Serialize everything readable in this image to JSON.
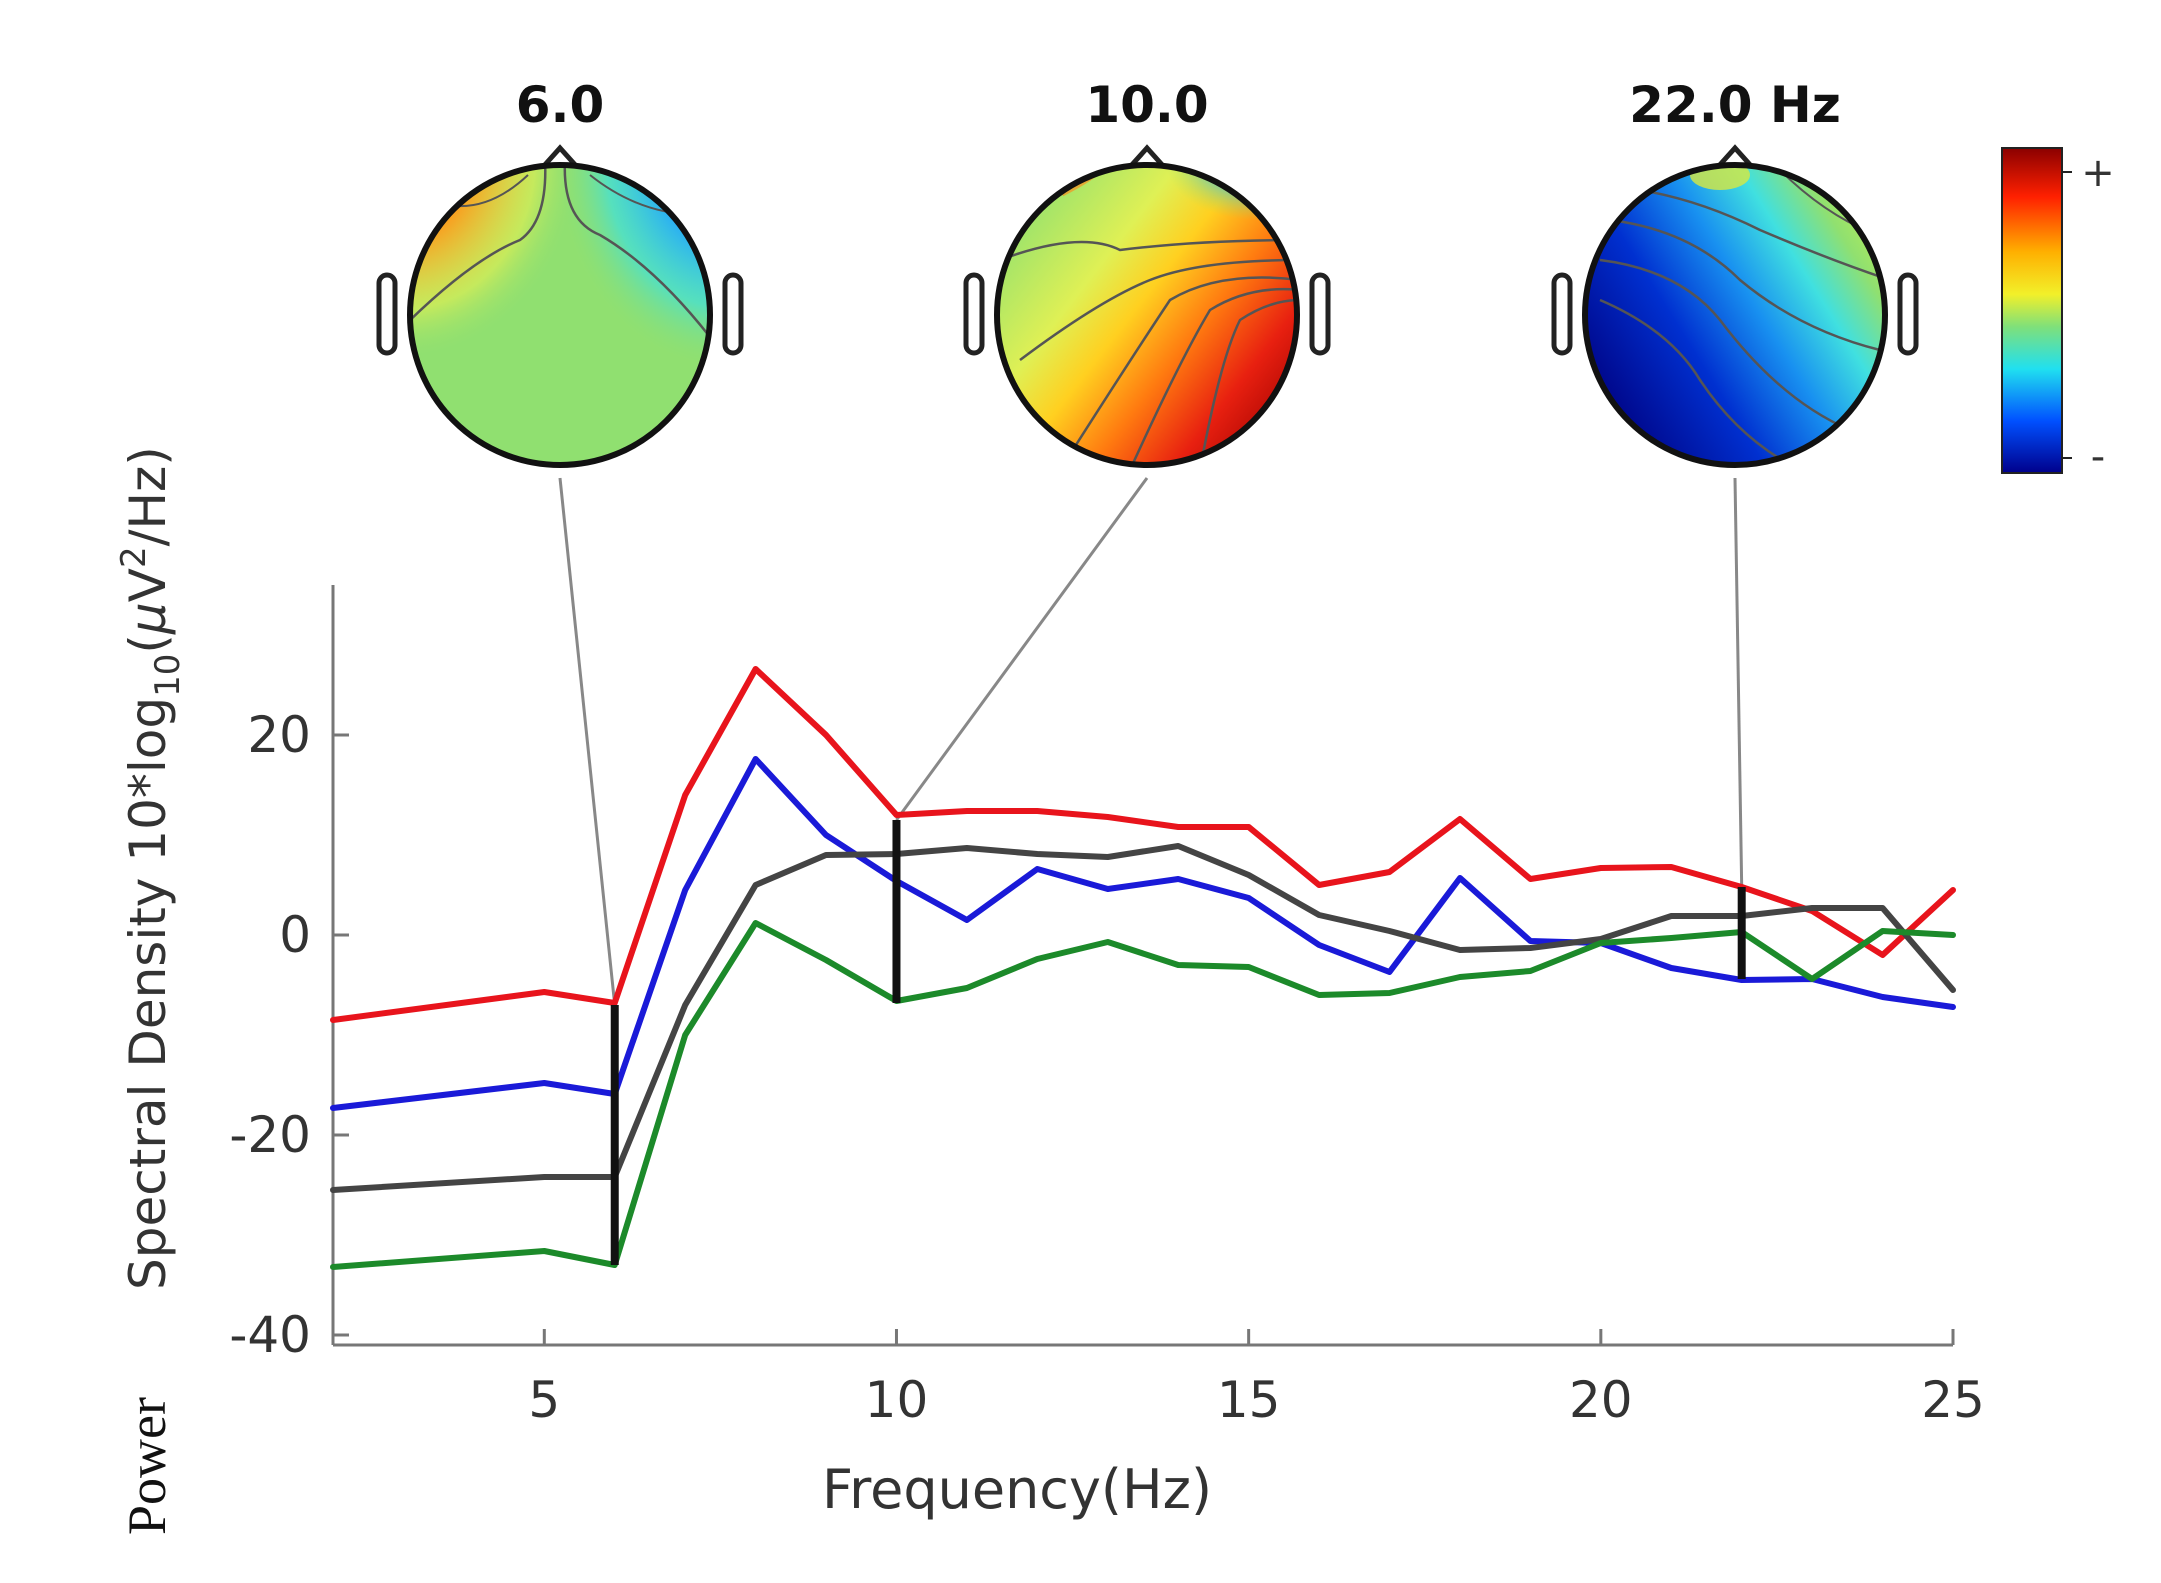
{
  "chart_data": {
    "type": "line",
    "xlabel": "Frequency(Hz)",
    "ylabel": {
      "prefix": "Power",
      "main": "Spectral Density 10*log",
      "sub": "10",
      "paren_open": "(",
      "mu": "μ",
      "unit_v": "V",
      "sup": "2",
      "unit_end": "/Hz)"
    },
    "xlim": [
      2,
      25
    ],
    "ylim": [
      -41,
      35
    ],
    "x_ticks": [
      5,
      10,
      15,
      20,
      25
    ],
    "x_tick_labels": [
      "5",
      "10",
      "15",
      "20",
      "25"
    ],
    "y_ticks": [
      20,
      0,
      -20,
      -40
    ],
    "y_tick_labels": [
      "20",
      "0",
      "-20",
      "-40"
    ],
    "x": [
      2,
      5,
      6,
      7,
      8,
      9,
      10,
      11,
      12,
      13,
      14,
      15,
      16,
      17,
      18,
      19,
      20,
      21,
      22,
      23,
      24,
      25
    ],
    "series": [
      {
        "name": "red",
        "color": "#e8141c",
        "values": [
          -8.5,
          -5.7,
          -6.8,
          14,
          26.6,
          20,
          12,
          12.4,
          12.4,
          11.8,
          10.8,
          10.8,
          5,
          6.3,
          11.6,
          5.6,
          6.7,
          6.8,
          4.8,
          2.4,
          -2,
          4.5
        ]
      },
      {
        "name": "blue",
        "color": "#1a1ad8",
        "values": [
          -17.3,
          -14.8,
          -15.9,
          4.5,
          17.6,
          10,
          5.4,
          1.5,
          6.6,
          4.6,
          5.6,
          3.7,
          -1,
          -3.7,
          5.7,
          -0.6,
          -0.8,
          -3.3,
          -4.5,
          -4.4,
          -6.2,
          -7.2
        ]
      },
      {
        "name": "black",
        "color": "#444444",
        "values": [
          -25.5,
          -24.2,
          -24.2,
          -7,
          5,
          8,
          8.1,
          8.7,
          8.1,
          7.8,
          8.9,
          6,
          2,
          0.4,
          -1.5,
          -1.3,
          -0.4,
          1.9,
          1.9,
          2.7,
          2.7,
          -5.5
        ]
      },
      {
        "name": "green",
        "color": "#1c8a2a",
        "values": [
          -33.2,
          -31.6,
          -33,
          -10,
          1.2,
          -2.5,
          -6.6,
          -5.3,
          -2.4,
          -0.7,
          -3,
          -3.2,
          -6,
          -5.8,
          -4.2,
          -3.6,
          -0.8,
          -0.3,
          0.3,
          -4.4,
          0.4,
          0
        ]
      }
    ],
    "markers": [
      {
        "x": 6,
        "y_top": -7,
        "y_bottom": -33
      },
      {
        "x": 10,
        "y_top": 11.5,
        "y_bottom": -6.8
      },
      {
        "x": 22,
        "y_top": 4.8,
        "y_bottom": -4.4
      }
    ],
    "topomaps": [
      {
        "label": "6.0",
        "x": 6
      },
      {
        "label": "10.0",
        "x": 10
      },
      {
        "label": "22.0 Hz",
        "x": 22
      }
    ],
    "colorbar": {
      "plus_label": "+",
      "minus_label": "-"
    }
  }
}
